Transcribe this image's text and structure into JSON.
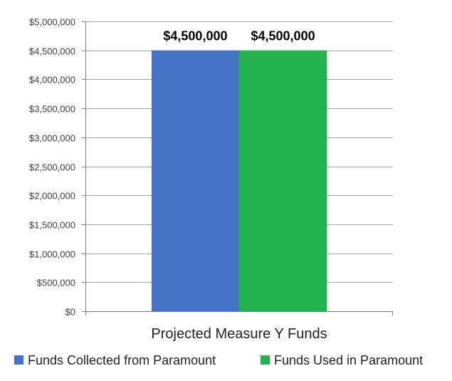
{
  "chart_data": {
    "type": "bar",
    "categories": [
      "Projected Measure Y Funds"
    ],
    "series": [
      {
        "name": "Funds Collected from Paramount",
        "values": [
          4500000
        ],
        "color": "#4472C4",
        "value_label": "$4,500,000"
      },
      {
        "name": "Funds Used in Paramount",
        "values": [
          4500000
        ],
        "color": "#21B14D",
        "value_label": "$4,500,000"
      }
    ],
    "ylim": [
      0,
      5000000
    ],
    "yticks": [
      0,
      500000,
      1000000,
      1500000,
      2000000,
      2500000,
      3000000,
      3500000,
      4000000,
      4500000,
      5000000
    ],
    "ytick_labels": [
      "$0",
      "$500,000",
      "$1,000,000",
      "$1,500,000",
      "$2,000,000",
      "$2,500,000",
      "$3,000,000",
      "$3,500,000",
      "$4,000,000",
      "$4,500,000",
      "$5,000,000"
    ],
    "grid": true,
    "legend_position": "bottom"
  }
}
